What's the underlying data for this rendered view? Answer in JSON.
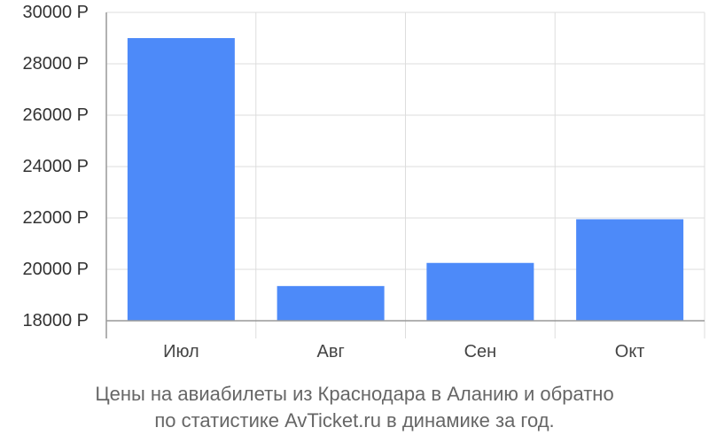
{
  "chart_data": {
    "type": "bar",
    "categories": [
      "Июл",
      "Авг",
      "Сен",
      "Окт"
    ],
    "values": [
      29000,
      19350,
      20250,
      21950
    ],
    "ylim": [
      18000,
      30000
    ],
    "yticks": [
      30000,
      28000,
      26000,
      24000,
      22000,
      20000,
      18000
    ],
    "ytick_labels": [
      "30000 Р",
      "28000 Р",
      "26000 Р",
      "24000 Р",
      "22000 Р",
      "20000 Р",
      "18000 Р"
    ],
    "grid": true,
    "bar_color": "#4d8af9",
    "grid_color": "#dddddd",
    "axis_color": "#999999"
  },
  "caption": {
    "line1": "Цены на авиабилеты из Краснодара в Аланию и обратно",
    "line2": "по статистике AvTicket.ru в динамике за год."
  }
}
